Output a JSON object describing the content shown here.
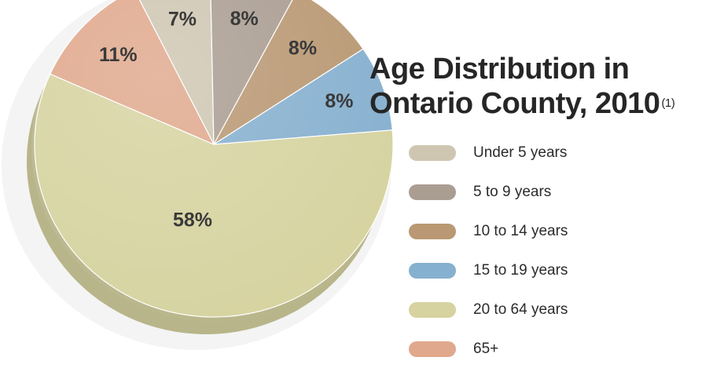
{
  "chart_data": {
    "type": "pie",
    "title": "Age Distribution in Ontario County, 2010",
    "title_lines": [
      "Age Distribution in",
      "Ontario County, 2010"
    ],
    "title_superscript": "(1)",
    "categories": [
      "Under 5 years",
      "5 to 9 years",
      "10 to 14 years",
      "15 to 19 years",
      "20 to 64 years",
      "65+"
    ],
    "values": [
      7,
      8,
      8,
      8,
      58,
      11
    ],
    "data_labels": [
      "7%",
      "8%",
      "8%",
      "8%",
      "58%",
      "11%"
    ],
    "colors": [
      "#cfc6b2",
      "#aa9d92",
      "#b99873",
      "#86b0cf",
      "#d6d3a0",
      "#e0a88c"
    ],
    "legend_position": "right",
    "style": "3d"
  }
}
